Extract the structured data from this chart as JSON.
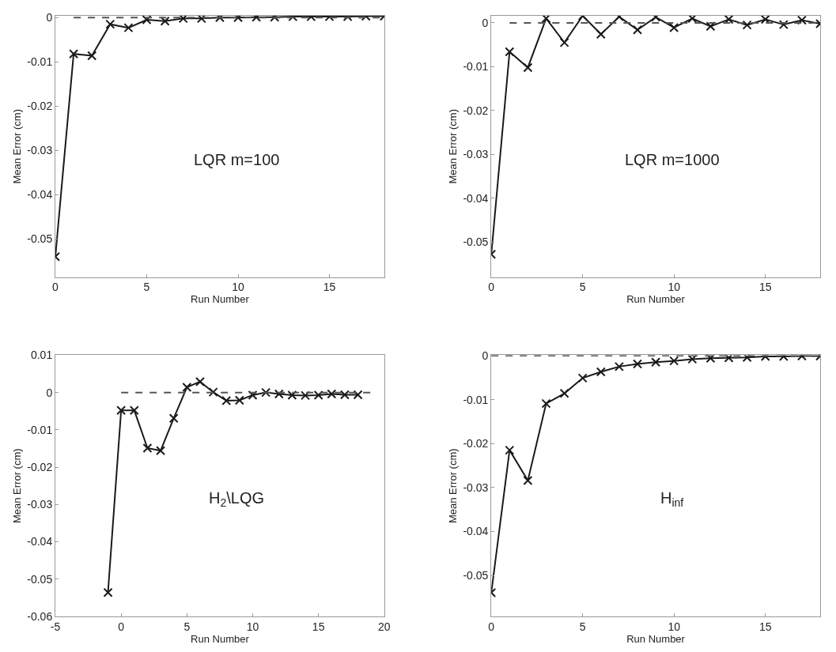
{
  "chart_data": [
    {
      "type": "line",
      "xlabel": "Run Number",
      "ylabel": "Mean Error (cm)",
      "annotations": [
        "LQR m=100"
      ],
      "marker": "cross",
      "xlim": [
        0,
        18
      ],
      "xticks": [
        0,
        5,
        10,
        15
      ],
      "ylim": [
        -0.0586,
        0.0004
      ],
      "yticks": [
        -0.05,
        -0.04,
        -0.03,
        -0.02,
        -0.01,
        0
      ],
      "x": [
        0,
        1,
        2,
        3,
        4,
        5,
        6,
        7,
        8,
        9,
        10,
        11,
        12,
        13,
        14,
        15,
        16,
        17,
        18
      ],
      "series": [
        {
          "color": "#1a1a1a",
          "values": [
            -0.054,
            -0.0082,
            -0.0086,
            -0.0015,
            -0.0023,
            -0.0005,
            -0.0008,
            -0.0002,
            -0.0002,
            0,
            0,
            0.0001,
            0.0001,
            0.0002,
            0.0002,
            0.0002,
            0.0002,
            0.0003,
            0.0003
          ]
        },
        {
          "color": "#555555",
          "x": [
            1,
            18
          ],
          "values": [
            0,
            0
          ],
          "line_style": "dashed",
          "marker": "none"
        }
      ]
    },
    {
      "type": "line",
      "xlabel": "Run Number",
      "ylabel": "Mean Error (cm)",
      "annotations": [
        "LQR m=1000"
      ],
      "marker": "cross",
      "xlim": [
        0,
        18
      ],
      "xticks": [
        0,
        5,
        10,
        15
      ],
      "ylim": [
        -0.058,
        0.0016
      ],
      "yticks": [
        -0.05,
        -0.04,
        -0.03,
        -0.02,
        -0.01,
        0
      ],
      "x": [
        0,
        1,
        2,
        3,
        4,
        5,
        6,
        7,
        8,
        9,
        10,
        11,
        12,
        13,
        14,
        15,
        16,
        17,
        18
      ],
      "series": [
        {
          "color": "#1a1a1a",
          "values": [
            -0.0528,
            -0.0066,
            -0.0102,
            0.001,
            -0.0045,
            0.0016,
            -0.0026,
            0.0014,
            -0.0016,
            0.0013,
            -0.0011,
            0.001,
            -0.0008,
            0.0008,
            -0.0005,
            0.0008,
            -0.0004,
            0.0006,
            -0.0002
          ]
        },
        {
          "color": "#555555",
          "x": [
            1,
            18
          ],
          "values": [
            0,
            0
          ],
          "line_style": "dashed",
          "marker": "none"
        }
      ]
    },
    {
      "type": "line",
      "xlabel": "Run Number",
      "ylabel": "Mean Error (cm)",
      "annotations": [
        "H$_{2}$\\LQG"
      ],
      "marker": "cross",
      "xlim": [
        -5,
        20
      ],
      "xticks": [
        -5,
        0,
        5,
        10,
        15,
        20
      ],
      "ylim": [
        -0.06,
        0.01
      ],
      "yticks": [
        -0.06,
        -0.05,
        -0.04,
        -0.03,
        -0.02,
        -0.01,
        0,
        0.01
      ],
      "x": [
        -1,
        0,
        1,
        2,
        3,
        4,
        5,
        6,
        7,
        8,
        9,
        10,
        11,
        12,
        13,
        14,
        15,
        16,
        17,
        18
      ],
      "series": [
        {
          "color": "#1a1a1a",
          "values": [
            -0.0536,
            -0.0048,
            -0.0048,
            -0.0149,
            -0.0156,
            -0.0069,
            0.0014,
            0.0029,
            0.0001,
            -0.0022,
            -0.0021,
            -0.0007,
            0,
            -0.0004,
            -0.0007,
            -0.0008,
            -0.0007,
            -0.0004,
            -0.0006,
            -0.0006
          ]
        },
        {
          "color": "#555555",
          "x": [
            0,
            19
          ],
          "values": [
            0,
            0
          ],
          "line_style": "dashed",
          "marker": "none"
        }
      ]
    },
    {
      "type": "line",
      "xlabel": "Run Number",
      "ylabel": "Mean Error (cm)",
      "annotations": [
        "H$_{inf}$"
      ],
      "marker": "cross",
      "xlim": [
        0,
        18
      ],
      "xticks": [
        0,
        5,
        10,
        15
      ],
      "ylim": [
        -0.0593,
        0.0001
      ],
      "yticks": [
        -0.05,
        -0.04,
        -0.03,
        -0.02,
        -0.01,
        0
      ],
      "x": [
        0,
        1,
        2,
        3,
        4,
        5,
        6,
        7,
        8,
        9,
        10,
        11,
        12,
        13,
        14,
        15,
        16,
        17,
        18
      ],
      "series": [
        {
          "color": "#1a1a1a",
          "values": [
            -0.0539,
            -0.0215,
            -0.0284,
            -0.0109,
            -0.0086,
            -0.0051,
            -0.0037,
            -0.0025,
            -0.0019,
            -0.0015,
            -0.0012,
            -0.0008,
            -0.0006,
            -0.0005,
            -0.0004,
            -0.0002,
            -0.0002,
            -0.0001,
            -0.0001
          ]
        },
        {
          "color": "#555555",
          "x": [
            0,
            18
          ],
          "values": [
            0,
            0
          ],
          "line_style": "dashed",
          "marker": "none"
        }
      ]
    }
  ]
}
